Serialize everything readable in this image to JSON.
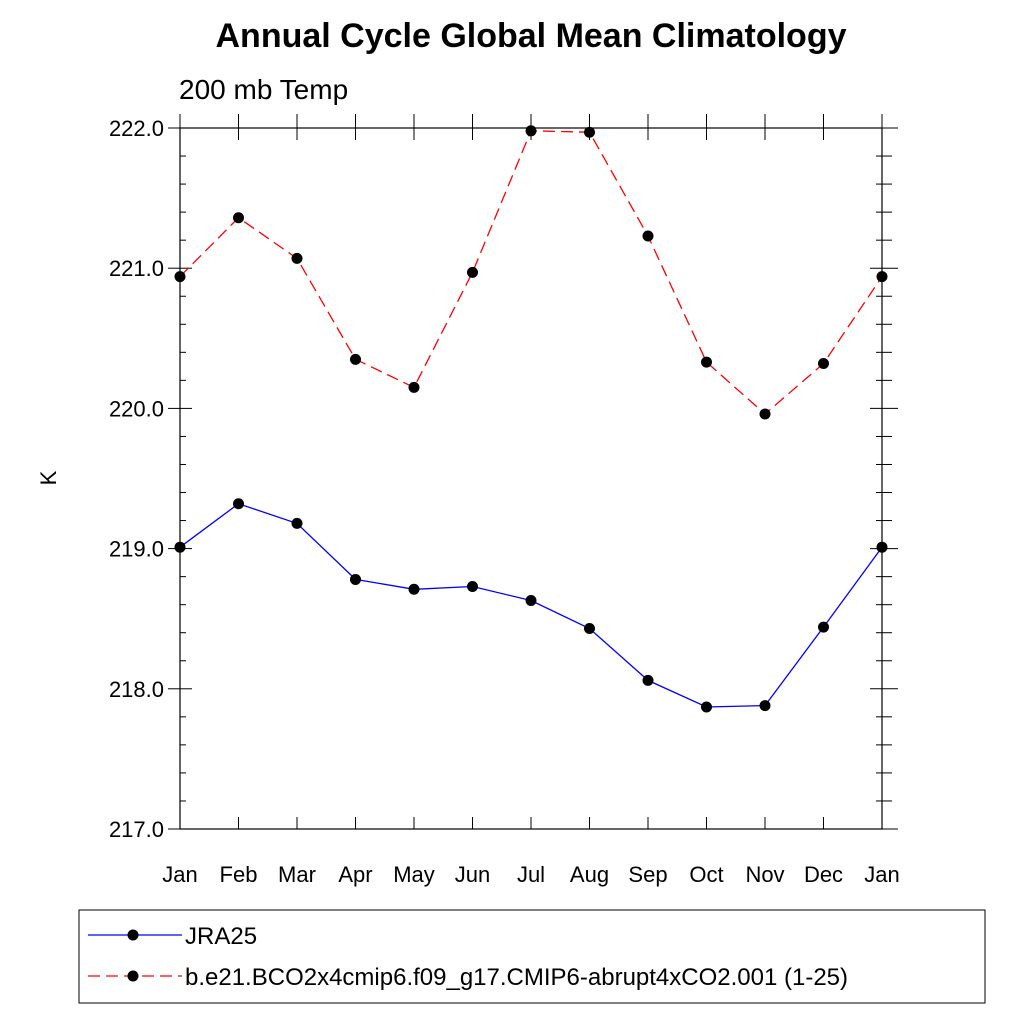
{
  "chart_data": {
    "type": "line",
    "title": "Annual Cycle Global Mean Climatology",
    "subtitle": "200 mb Temp",
    "xlabel": "",
    "ylabel": "K",
    "categories": [
      "Jan",
      "Feb",
      "Mar",
      "Apr",
      "May",
      "Jun",
      "Jul",
      "Aug",
      "Sep",
      "Oct",
      "Nov",
      "Dec",
      "Jan"
    ],
    "ylim": [
      217.0,
      222.0
    ],
    "yticks": [
      "217.0",
      "218.0",
      "219.0",
      "220.0",
      "221.0",
      "222.0"
    ],
    "grid": false,
    "legend_position": "bottom",
    "series": [
      {
        "name": "JRA25",
        "color": "#0000ff",
        "line_style": "solid",
        "marker": "filled-circle",
        "values": [
          219.01,
          219.32,
          219.18,
          218.78,
          218.71,
          218.73,
          218.63,
          218.43,
          218.06,
          217.87,
          217.88,
          218.44,
          219.01
        ]
      },
      {
        "name": "b.e21.BCO2x4cmip6.f09_g17.CMIP6-abrupt4xCO2.001 (1-25)",
        "color": "#ff0000",
        "line_style": "dashed",
        "marker": "filled-circle",
        "values": [
          220.94,
          221.36,
          221.07,
          220.35,
          220.15,
          220.97,
          221.98,
          221.97,
          221.23,
          220.33,
          219.96,
          220.32,
          220.94
        ]
      }
    ]
  }
}
